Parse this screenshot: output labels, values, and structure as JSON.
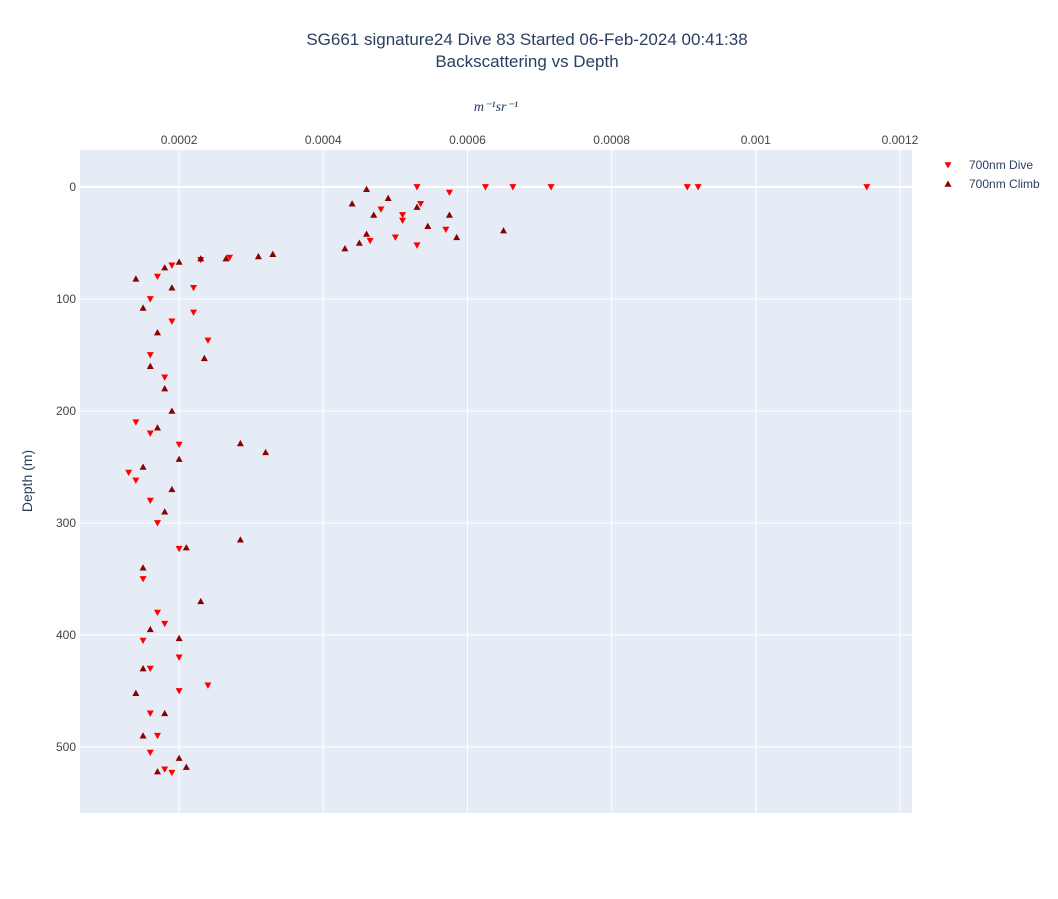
{
  "chart_data": {
    "type": "scatter",
    "title": "SG661 signature24 Dive 83 Started 06-Feb-2024 00:41:38",
    "subtitle": "Backscattering vs Depth",
    "x_label": "m⁻¹sr⁻¹",
    "y_label": "Depth (m)",
    "xlim": [
      6.25e-05,
      0.0012167
    ],
    "ylim": [
      559,
      -33
    ],
    "xticks": [
      0.0002,
      0.0004,
      0.0006,
      0.0008,
      0.001,
      0.0012
    ],
    "yticks": [
      0,
      100,
      200,
      300,
      400,
      500
    ],
    "grid": true,
    "legend": "right",
    "series": [
      {
        "name": "700nm Dive",
        "color": "#ff0000",
        "marker": "triangle-down",
        "x": [
          0.00053,
          0.000575,
          0.000625,
          0.000663,
          0.000716,
          0.000905,
          0.00092,
          0.001154,
          0.000535,
          0.00048,
          0.00051,
          0.00051,
          0.00057,
          0.0005,
          0.00053,
          0.000465,
          0.00027,
          0.00023,
          0.00019,
          0.00017,
          0.00022,
          0.00016,
          0.00022,
          0.00019,
          0.00024,
          0.00016,
          0.00018,
          0.00014,
          0.00016,
          0.0002,
          0.00013,
          0.00014,
          0.00016,
          0.00017,
          0.0002,
          0.00015,
          0.00017,
          0.00018,
          0.00015,
          0.0002,
          0.00016,
          0.00024,
          0.0002,
          0.00016,
          0.00017,
          0.00016,
          0.00018,
          0.00019
        ],
        "y": [
          0,
          5,
          0,
          0,
          0,
          0,
          0,
          0,
          15,
          20,
          25,
          30,
          38,
          45,
          52,
          48,
          63,
          65,
          70,
          80,
          90,
          100,
          112,
          120,
          137,
          150,
          170,
          210,
          220,
          230,
          255,
          262,
          280,
          300,
          323,
          350,
          380,
          390,
          405,
          420,
          430,
          445,
          450,
          470,
          490,
          505,
          520,
          523
        ]
      },
      {
        "name": "700nm Climb",
        "color": "#8b0000",
        "marker": "triangle-up",
        "x": [
          0.00046,
          0.00049,
          0.00044,
          0.00053,
          0.00047,
          0.000575,
          0.000545,
          0.00065,
          0.000585,
          0.00046,
          0.00045,
          0.00043,
          0.00033,
          0.00031,
          0.000265,
          0.00023,
          0.0002,
          0.00018,
          0.00014,
          0.00019,
          0.00015,
          0.00017,
          0.000235,
          0.00016,
          0.00018,
          0.00019,
          0.00017,
          0.000285,
          0.00032,
          0.0002,
          0.00015,
          0.00019,
          0.00018,
          0.000285,
          0.00021,
          0.00015,
          0.00023,
          0.00016,
          0.0002,
          0.00015,
          0.00014,
          0.00018,
          0.00015,
          0.0002,
          0.00021,
          0.00017
        ],
        "y": [
          2,
          10,
          15,
          18,
          25,
          25,
          35,
          39,
          45,
          42,
          50,
          55,
          60,
          62,
          64,
          64,
          67,
          72,
          82,
          90,
          108,
          130,
          153,
          160,
          180,
          200,
          215,
          229,
          237,
          243,
          250,
          270,
          290,
          315,
          322,
          340,
          370,
          395,
          403,
          430,
          452,
          470,
          490,
          510,
          518,
          522
        ]
      }
    ]
  }
}
